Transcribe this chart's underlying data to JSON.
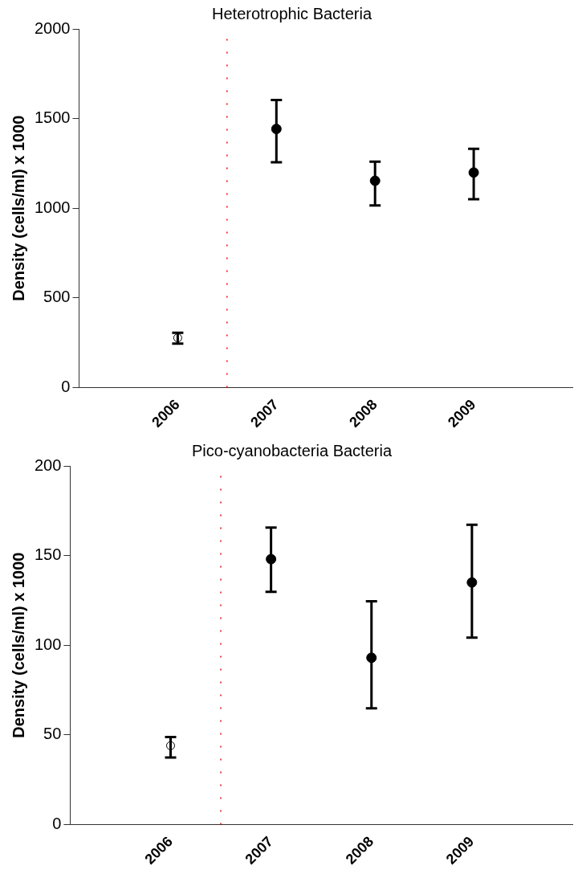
{
  "chart_data": [
    {
      "type": "scatter",
      "title": "Heterotrophic Bacteria",
      "ylabel": "Density (cells/ml) x 1000",
      "marker": "circle",
      "grid": false,
      "legend": false,
      "xlim": [
        2005,
        2010
      ],
      "xticks": [
        {
          "value": 2005,
          "label": null
        },
        2006,
        2007,
        2008,
        2009
      ],
      "ylim": [
        0,
        2000
      ],
      "yticks": [
        0,
        500,
        1000,
        1500,
        2000
      ],
      "ref_lines": [
        {
          "axis": "x",
          "value": 2006.5,
          "color": "#ff0000",
          "line_style": "dotted"
        }
      ],
      "series": [
        {
          "color": "#000000",
          "x": [
            2006
          ],
          "values": [
            277
          ],
          "errors": [
            [
              245,
              305
            ]
          ]
        },
        {
          "color": "#000000",
          "x": [
            2007,
            2008,
            2009
          ],
          "values": [
            1442,
            1153,
            1199
          ],
          "errors": [
            [
              1256,
              1604
            ],
            [
              1015,
              1260
            ],
            [
              1050,
              1331
            ]
          ]
        }
      ]
    },
    {
      "type": "scatter",
      "title": "Pico-cyanobacteria Bacteria",
      "ylabel": "Density (cells/ml) x 1000",
      "marker": "circle",
      "grid": false,
      "legend": false,
      "xlim": [
        2005,
        2010
      ],
      "xticks": [
        {
          "value": 2005,
          "label": null
        },
        2006,
        2007,
        2008,
        2009
      ],
      "ylim": [
        0,
        200
      ],
      "yticks": [
        0,
        50,
        100,
        150,
        200
      ],
      "ref_lines": [
        {
          "axis": "x",
          "value": 2006.5,
          "color": "#ff0000",
          "line_style": "dotted"
        }
      ],
      "series": [
        {
          "color": "#000000",
          "x": [
            2006
          ],
          "values": [
            44
          ],
          "errors": [
            [
              37.4,
              48.8
            ]
          ]
        },
        {
          "color": "#000000",
          "x": [
            2007,
            2008,
            2009
          ],
          "values": [
            148,
            93,
            135
          ],
          "errors": [
            [
              129.8,
              165.6
            ],
            [
              64.8,
              124.5
            ],
            [
              104.2,
              167.2
            ]
          ]
        }
      ]
    }
  ]
}
